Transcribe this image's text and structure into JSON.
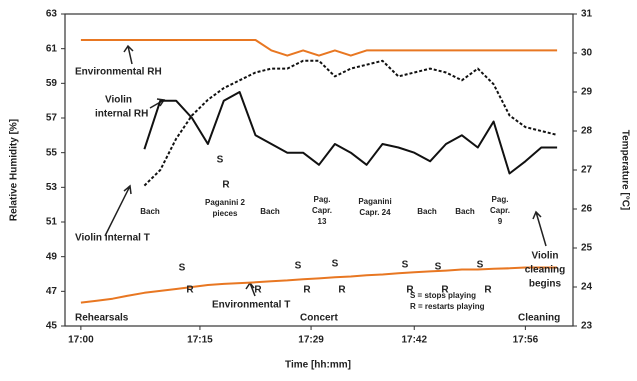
{
  "chart_data": {
    "type": "line",
    "x_label": "Time [hh:mm]",
    "y_label": "Relative Humidity [%]",
    "y2_label": "Temperature [°C]",
    "x": [
      0,
      2,
      4,
      6,
      8,
      10,
      12,
      14,
      16,
      18,
      20,
      22,
      24,
      26,
      28,
      30,
      32,
      34,
      36,
      38,
      40,
      42,
      44,
      46,
      48,
      50,
      52,
      54,
      56,
      58,
      60
    ],
    "xlim": [
      -2,
      62
    ],
    "xticks": [
      {
        "value": 0,
        "label": "17:00"
      },
      {
        "value": 15,
        "label": "17:15"
      },
      {
        "value": 29,
        "label": "17:29"
      },
      {
        "value": 42,
        "label": "17:42"
      },
      {
        "value": 56,
        "label": "17:56"
      }
    ],
    "ylim": [
      45,
      63
    ],
    "yticks": [
      45,
      47,
      49,
      51,
      53,
      55,
      57,
      59,
      61,
      63
    ],
    "y2lim": [
      23,
      31
    ],
    "y2ticks": [
      23,
      24,
      25,
      26,
      27,
      28,
      29,
      30,
      31
    ],
    "series": [
      {
        "name": "Environmental RH",
        "color": "#e87722",
        "style": "solid",
        "values": [
          61.5,
          61.5,
          61.5,
          61.5,
          61.5,
          61.5,
          61.5,
          61.5,
          61.5,
          61.5,
          61.5,
          61.5,
          60.9,
          60.6,
          60.9,
          60.6,
          60.9,
          60.6,
          60.9,
          60.9,
          60.9,
          60.9,
          60.9,
          60.9,
          60.9,
          60.9,
          60.9,
          60.9,
          60.9,
          60.9,
          60.9
        ]
      },
      {
        "name": "Violin internal RH",
        "color": "#111111",
        "style": "solid",
        "values": [
          null,
          null,
          null,
          null,
          55.2,
          58,
          58,
          57,
          55.5,
          58,
          58.5,
          56,
          55.5,
          55,
          55,
          54.3,
          55.5,
          55,
          54.3,
          55.5,
          55.3,
          55,
          54.5,
          55.5,
          56,
          55.3,
          56.8,
          53.8,
          54.5,
          55.3,
          55.3
        ]
      },
      {
        "name": "Violin internal T",
        "color": "#111111",
        "style": "dashed",
        "axis": "y2",
        "values": [
          null,
          null,
          null,
          null,
          26.6,
          27,
          27.8,
          28.4,
          28.8,
          29.1,
          29.3,
          29.5,
          29.6,
          29.6,
          29.8,
          29.8,
          29.4,
          29.6,
          29.7,
          29.8,
          29.4,
          29.5,
          29.6,
          29.5,
          29.3,
          29.6,
          29.2,
          28.4,
          28.1,
          28,
          27.9
        ]
      },
      {
        "name": "Environmental T",
        "color": "#e87722",
        "style": "solid",
        "axis": "y2",
        "values": [
          23.6,
          23.65,
          23.7,
          23.78,
          23.85,
          23.9,
          23.95,
          24,
          24.05,
          24.08,
          24.1,
          24.12,
          24.15,
          24.17,
          24.2,
          24.22,
          24.25,
          24.27,
          24.3,
          24.32,
          24.35,
          24.38,
          24.4,
          24.42,
          24.45,
          24.45,
          24.47,
          24.48,
          24.5,
          24.5,
          24.5
        ]
      }
    ],
    "annotations": [
      "Environmental RH",
      "Violin",
      "internal RH",
      "Violin internal T",
      "Environmental T",
      "Rehearsals",
      "Concert",
      "Cleaning",
      "Bach",
      "Paganini 2",
      "pieces",
      "Bach",
      "Pag.",
      "Capr.",
      "13",
      "Paganini",
      "Capr. 24",
      "Bach",
      "Bach",
      "Pag.",
      "Capr.",
      "9",
      "Violin",
      "cleaning",
      "begins",
      "S = stops playing",
      "R = restarts playing",
      "S",
      "R",
      "S",
      "R",
      "R",
      "S",
      "R",
      "S",
      "R",
      "S",
      "R",
      "S",
      "R",
      "S",
      "R"
    ]
  }
}
